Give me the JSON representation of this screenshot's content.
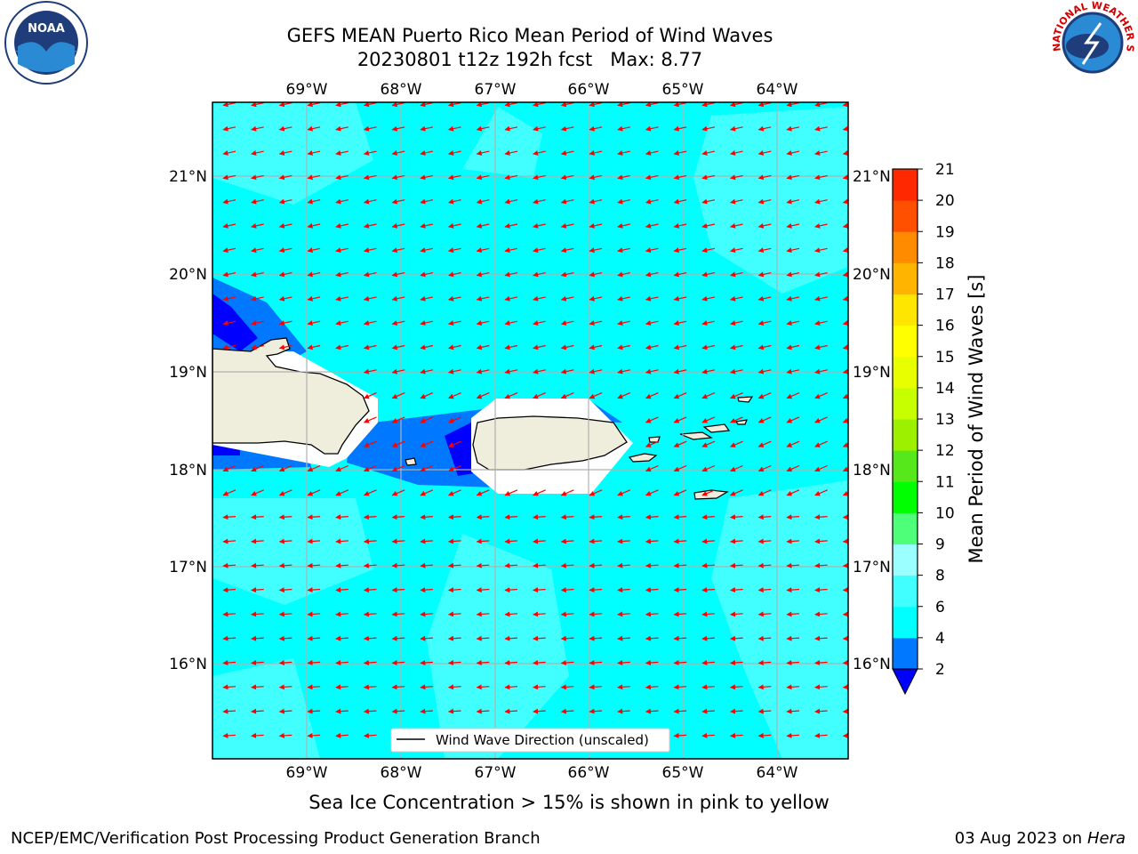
{
  "title_line1": "GEFS MEAN Puerto Rico Mean Period of Wind Waves",
  "title_line2": "20230801 t12z 192h fcst   Max: 8.77",
  "logos": {
    "left": "NOAA",
    "right_ring": "NATIONAL WEATHER SERVICE"
  },
  "map": {
    "lon_labels": [
      "69°W",
      "68°W",
      "67°W",
      "66°W",
      "65°W",
      "64°W"
    ],
    "lat_labels": [
      "21°N",
      "20°N",
      "19°N",
      "18°N",
      "17°N",
      "16°N"
    ],
    "legend_label": "Wind Wave Direction (unscaled)",
    "colors": {
      "ocean": "#00ffff",
      "ocean_light": "#41ffff",
      "band_blue": "#0078ff",
      "band_darkblue": "#0000ff",
      "land": "#efeddb",
      "arrow": "#ff0000"
    }
  },
  "colorbar": {
    "label": "Mean Period of Wind Waves [s]",
    "ticks": [
      "2",
      "4",
      "6",
      "8",
      "9",
      "10",
      "11",
      "12",
      "13",
      "14",
      "15",
      "16",
      "17",
      "18",
      "19",
      "20",
      "21"
    ],
    "colors": [
      "#0078ff",
      "#00ffff",
      "#41ffff",
      "#9cffff",
      "#4dff79",
      "#00ff00",
      "#56e81a",
      "#9cf000",
      "#c8ff00",
      "#e8ff00",
      "#ffff00",
      "#ffe600",
      "#ffb400",
      "#ff8c00",
      "#ff5000",
      "#ff2800",
      "#ff0000"
    ],
    "under_color": "#0000ff"
  },
  "note": "Sea Ice Concentration > 15% is shown in pink to yellow",
  "footer_left": "NCEP/EMC/Verification Post Processing Product Generation Branch",
  "footer_right_prefix": "03 Aug 2023 on",
  "footer_right_host": "Hera"
}
